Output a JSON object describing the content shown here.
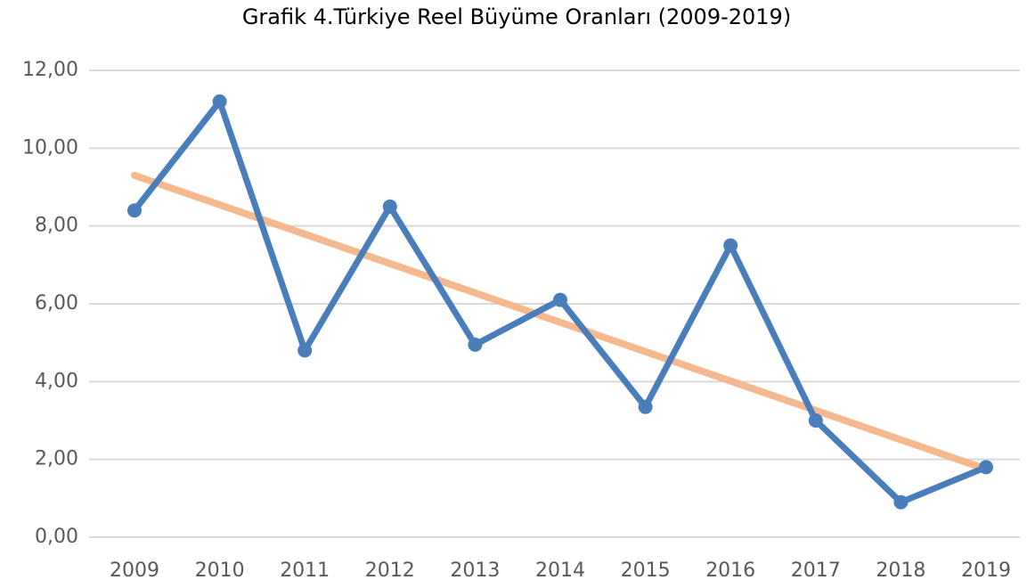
{
  "chart_data": {
    "type": "line",
    "title": "Grafik 4.Türkiye Reel Büyüme Oranları (2009-2019)",
    "categories": [
      "2009",
      "2010",
      "2011",
      "2012",
      "2013",
      "2014",
      "2015",
      "2016",
      "2017",
      "2018",
      "2019"
    ],
    "series": [
      {
        "color": "#4a7ebb",
        "values": [
          8.4,
          11.2,
          4.8,
          8.5,
          4.95,
          6.1,
          3.35,
          7.5,
          3.0,
          0.9,
          1.8
        ]
      },
      {
        "color": "#f4b183",
        "values": [
          9.3,
          8.545,
          7.79,
          7.035,
          6.28,
          5.525,
          4.77,
          4.015,
          3.26,
          2.505,
          1.75
        ]
      }
    ],
    "ylim": [
      0,
      12
    ],
    "yticks": [
      {
        "value": 0,
        "label": "0,00"
      },
      {
        "value": 2,
        "label": "2,00"
      },
      {
        "value": 4,
        "label": "4,00"
      },
      {
        "value": 6,
        "label": "6,00"
      },
      {
        "value": 8,
        "label": "8,00"
      },
      {
        "value": 10,
        "label": "10,00"
      },
      {
        "value": 12,
        "label": "12,00"
      }
    ],
    "grid": true
  }
}
